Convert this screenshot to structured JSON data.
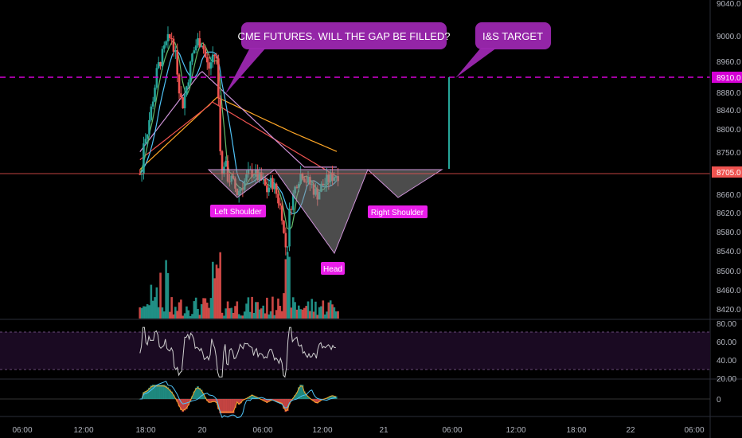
{
  "colors": {
    "background": "#000000",
    "up": "#26a69a",
    "down": "#ef5350",
    "axis_text": "#b2b5be",
    "target_line": "#d500d5",
    "price_line": "#ef5350",
    "callout": "#9c27b0",
    "label_bg": "#e91ee9",
    "pattern_fill": "#8a8a8a",
    "rsi_band": "#1a0a22",
    "rsi_line": "#d0d0d0",
    "ma_cyan": "#4fc3f7",
    "ma_green": "#66bb6a",
    "ma_violet": "#ce93d8",
    "ma_red": "#ef5350",
    "ma_orange": "#ffa726"
  },
  "annotations": {
    "cme_callout": "CME FUTURES. WILL THE GAP BE FILLED?",
    "target_callout": "I&S TARGET",
    "left_shoulder": "Left Shoulder",
    "head": "Head",
    "right_shoulder": "Right Shoulder"
  },
  "price_axis": {
    "ticks": [
      "9040.0",
      "9000.0",
      "8960.0",
      "8880.0",
      "8840.0",
      "8800.0",
      "8750.0",
      "8660.0",
      "8620.0",
      "8580.0",
      "8540.0",
      "8500.0",
      "8460.0",
      "8420.0"
    ],
    "target_label": "8910.0",
    "last_label": "8705.0"
  },
  "rsi_axis": {
    "ticks": [
      "80.00",
      "60.00",
      "40.00",
      "20.00"
    ]
  },
  "macd_axis": {
    "ticks": [
      "0"
    ]
  },
  "time_axis": {
    "ticks": [
      "06:00",
      "12:00",
      "18:00",
      "20",
      "06:00",
      "12:00",
      "21",
      "06:00",
      "12:00",
      "18:00",
      "22",
      "06:00"
    ]
  },
  "chart_data": {
    "type": "candlestick",
    "price": {
      "ylim": [
        8400,
        9040
      ],
      "target_level": 8910,
      "last_price": 8705,
      "neckline": 8715,
      "key_points": [
        {
          "label": "left_start",
          "time": "19 04:00",
          "price": 8780
        },
        {
          "label": "peak",
          "time": "19 12:00",
          "price": 9010
        },
        {
          "label": "drop",
          "time": "19 23:00",
          "price": 8670
        },
        {
          "label": "left_shoulder",
          "time": "20 02:00",
          "price": 8650
        },
        {
          "label": "head",
          "time": "20 12:30",
          "price": 8535
        },
        {
          "label": "right_shoulder",
          "time": "21 03:00",
          "price": 8655
        },
        {
          "label": "gap_spike",
          "time": "21 05:30",
          "price": 8910
        }
      ]
    },
    "rsi": {
      "ylim": [
        20,
        80
      ],
      "band": [
        30,
        70
      ],
      "last_value": 57
    },
    "macd": {
      "zero_line": 0
    }
  }
}
